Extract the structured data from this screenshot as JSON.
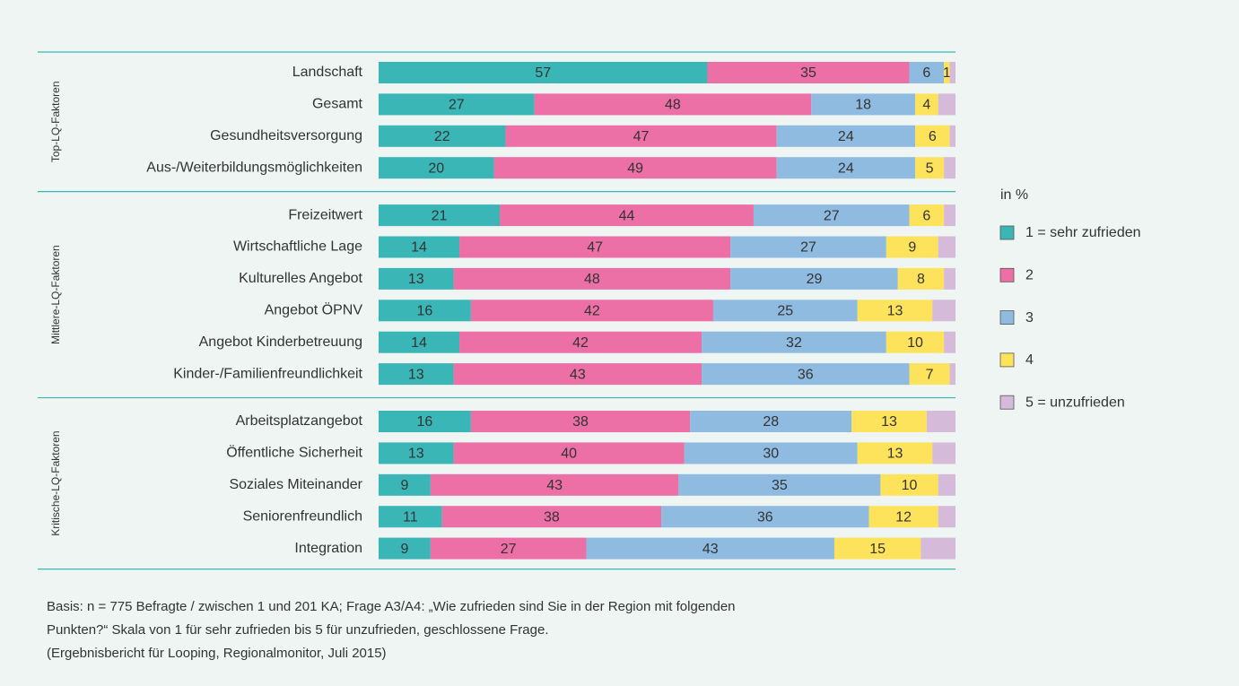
{
  "chart_data": {
    "type": "stacked-bar-horizontal",
    "groups": [
      {
        "name": "Top-LQ-Faktoren",
        "categories": [
          "Landschaft",
          "Gesamt",
          "Gesundheitsversorgung",
          "Aus-/Weiterbildungsmöglichkeiten"
        ]
      },
      {
        "name": "Mittlere-LQ-Faktoren",
        "categories": [
          "Freizeitwert",
          "Wirtschaftliche Lage",
          "Kulturelles Angebot",
          "Angebot ÖPNV",
          "Angebot Kinderbetreuung",
          "Kinder-/Familienfreundlichkeit"
        ]
      },
      {
        "name": "Kritische-LQ-Faktoren",
        "categories": [
          "Arbeitsplatzangebot",
          "Öffentliche Sicherheit",
          "Soziales Miteinander",
          "Seniorenfreundlich",
          "Integration"
        ]
      }
    ],
    "legend_title": "in %",
    "series": [
      {
        "name": "1 = sehr zufrieden",
        "color": "#3bb6b6",
        "values": [
          57,
          27,
          22,
          20,
          21,
          14,
          13,
          16,
          14,
          13,
          16,
          13,
          9,
          11,
          9
        ]
      },
      {
        "name": "2",
        "color": "#ec6fa6",
        "values": [
          35,
          48,
          47,
          49,
          44,
          47,
          48,
          42,
          42,
          43,
          38,
          40,
          43,
          38,
          27
        ]
      },
      {
        "name": "3",
        "color": "#8fbbe1",
        "values": [
          6,
          18,
          24,
          24,
          27,
          27,
          29,
          25,
          32,
          36,
          28,
          30,
          35,
          36,
          43
        ]
      },
      {
        "name": "4",
        "color": "#fde35c",
        "values": [
          1,
          4,
          6,
          5,
          6,
          9,
          8,
          13,
          10,
          7,
          13,
          13,
          10,
          12,
          15
        ]
      },
      {
        "name": "5 = unzufrieden",
        "color": "#d5bbd9",
        "values": [
          1,
          3,
          1,
          2,
          2,
          3,
          2,
          4,
          2,
          1,
          5,
          4,
          3,
          3,
          6
        ]
      }
    ],
    "xlim": [
      0,
      100
    ],
    "notes": [
      "Basis: n = 775 Befragte / zwischen 1 und 201 KA; Frage A3/A4: „Wie zufrieden sind Sie in der Region mit folgenden",
      "Punkten?“ Skala von 1 für sehr zufrieden bis 5 für unzufrieden, geschlossene Frage.",
      "(Ergebnisbericht für Looping, Regionalmonitor, Juli 2015)"
    ]
  }
}
